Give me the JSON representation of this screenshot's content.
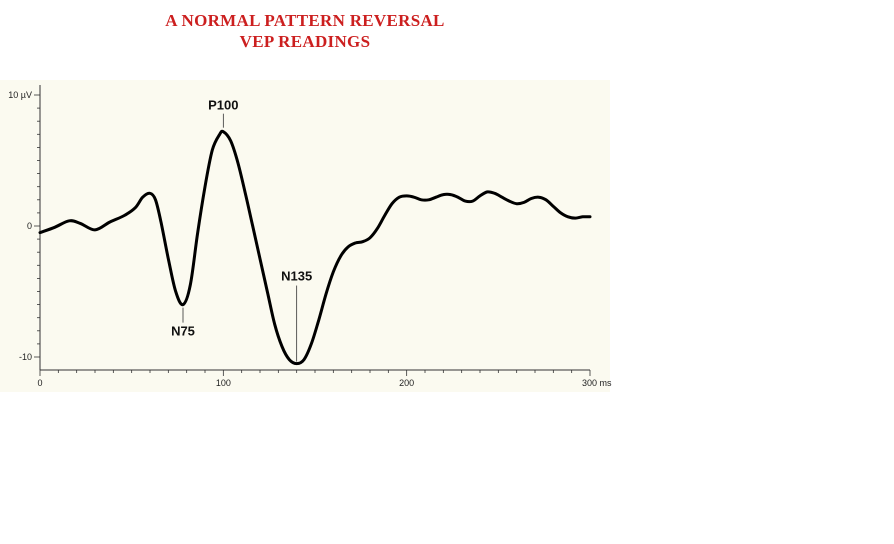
{
  "title_lines": [
    "A NORMAL PATTERN REVERSAL",
    "VEP READINGS"
  ],
  "colors": {
    "title": "#cc1f1f",
    "plot_background": "#fbfaf0",
    "trace": "#000000"
  },
  "chart_data": {
    "type": "line",
    "title": "A NORMAL PATTERN REVERSAL VEP READINGS",
    "xlim": [
      0,
      300
    ],
    "ylim": [
      -10,
      10
    ],
    "x_ticks": [
      {
        "value": 0,
        "label": "0"
      },
      {
        "value": 100,
        "label": "100"
      },
      {
        "value": 200,
        "label": "200"
      },
      {
        "value": 300,
        "label": "300 ms"
      }
    ],
    "y_ticks": [
      {
        "value": 10,
        "label": "10 µV"
      },
      {
        "value": 0,
        "label": "0"
      },
      {
        "value": -10,
        "label": "-10"
      }
    ],
    "grid": false,
    "legend": "none",
    "series": [
      {
        "x": [
          0,
          8,
          16,
          22,
          30,
          38,
          46,
          52,
          56,
          60,
          63,
          66,
          70,
          74,
          78,
          82,
          86,
          90,
          94,
          98,
          100,
          104,
          108,
          112,
          116,
          120,
          124,
          128,
          132,
          136,
          140,
          144,
          148,
          152,
          156,
          160,
          164,
          168,
          172,
          176,
          180,
          184,
          188,
          192,
          196,
          200,
          204,
          208,
          212,
          216,
          220,
          224,
          228,
          232,
          236,
          240,
          244,
          248,
          252,
          256,
          260,
          264,
          268,
          272,
          276,
          280,
          284,
          288,
          292,
          296,
          300
        ],
        "y": [
          -0.5,
          -0.1,
          0.4,
          0.2,
          -0.3,
          0.3,
          0.8,
          1.4,
          2.2,
          2.5,
          2.0,
          0.3,
          -2.5,
          -5.0,
          -6.0,
          -4.5,
          -0.5,
          3.0,
          5.8,
          7.0,
          7.2,
          6.5,
          4.8,
          2.5,
          0.0,
          -2.5,
          -5.0,
          -7.5,
          -9.2,
          -10.2,
          -10.5,
          -10.2,
          -9.0,
          -7.2,
          -5.2,
          -3.5,
          -2.3,
          -1.6,
          -1.3,
          -1.2,
          -0.9,
          -0.2,
          0.8,
          1.7,
          2.2,
          2.3,
          2.2,
          2.0,
          2.0,
          2.2,
          2.4,
          2.4,
          2.2,
          1.9,
          1.9,
          2.3,
          2.6,
          2.5,
          2.2,
          1.9,
          1.7,
          1.8,
          2.1,
          2.2,
          2.0,
          1.5,
          1.0,
          0.7,
          0.6,
          0.7,
          0.7
        ]
      }
    ],
    "annotations": [
      {
        "label": "N75",
        "x": 78,
        "y": -6.0
      },
      {
        "label": "P100",
        "x": 100,
        "y": 7.2
      },
      {
        "label": "N135",
        "x": 140,
        "y": -10.5
      }
    ]
  }
}
